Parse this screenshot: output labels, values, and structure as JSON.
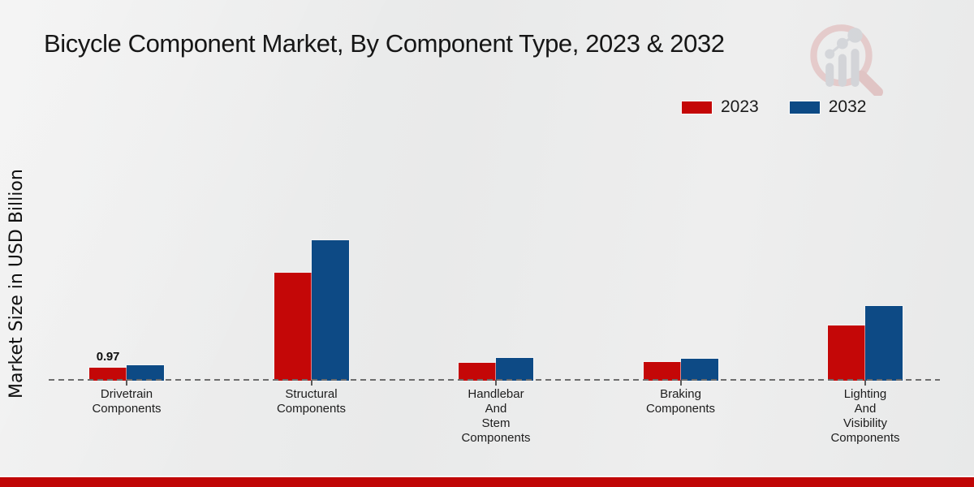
{
  "page": {
    "footer_bar_color": "#c00606",
    "background_color": "#ebecec"
  },
  "chart_data": {
    "type": "bar",
    "title": "Bicycle Component Market, By Component Type, 2023 & 2032",
    "ylabel": "Market Size in USD Billion",
    "xlabel": "",
    "categories": [
      "Drivetrain\nComponents",
      "Structural\nComponents",
      "Handlebar\nAnd\nStem\nComponents",
      "Braking\nComponents",
      "Lighting\nAnd\nVisibility\nComponents"
    ],
    "series": [
      {
        "name": "2023",
        "color": "#c40707",
        "values": [
          0.97,
          8.05,
          1.35,
          1.4,
          4.15
        ]
      },
      {
        "name": "2032",
        "color": "#0d4a85",
        "values": [
          1.15,
          10.5,
          1.7,
          1.65,
          5.6
        ]
      }
    ],
    "annotations": [
      {
        "category_index": 0,
        "series_index": 0,
        "text": "0.97"
      }
    ],
    "units": "USD Billion",
    "ylim": [
      0,
      12
    ],
    "grid": "off",
    "axis_style": "dashed-horizontal-baseline-only",
    "legend_position": "top-right"
  },
  "watermark": {
    "icon": "magnifier-bar-chart-logo"
  }
}
